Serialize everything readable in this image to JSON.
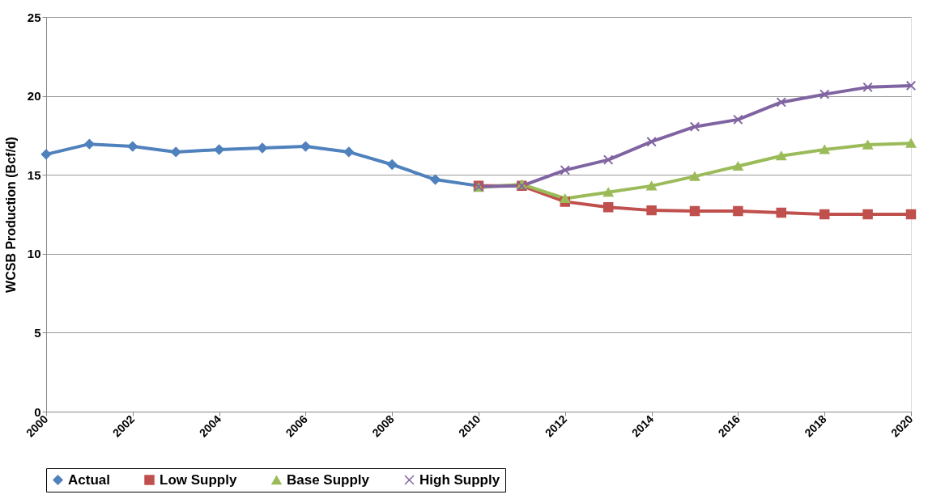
{
  "chart_data": {
    "type": "line",
    "ylabel": "WCSB Production  (Bcf/d)",
    "x": [
      2000,
      2001,
      2002,
      2003,
      2004,
      2005,
      2006,
      2007,
      2008,
      2009,
      2010,
      2011,
      2012,
      2013,
      2014,
      2015,
      2016,
      2017,
      2018,
      2019,
      2020
    ],
    "series": [
      {
        "name": "Actual",
        "color": "#4f81bd",
        "marker": "diamond",
        "values": [
          16.3,
          16.95,
          16.8,
          16.45,
          16.6,
          16.7,
          16.8,
          16.45,
          15.65,
          14.7,
          14.3,
          null,
          null,
          null,
          null,
          null,
          null,
          null,
          null,
          null,
          null
        ]
      },
      {
        "name": "Low Supply",
        "color": "#c0504d",
        "marker": "square",
        "values": [
          null,
          null,
          null,
          null,
          null,
          null,
          null,
          null,
          null,
          null,
          14.3,
          14.3,
          13.3,
          12.95,
          12.75,
          12.7,
          12.7,
          12.6,
          12.5,
          12.5,
          12.5
        ]
      },
      {
        "name": "Base Supply",
        "color": "#9bbb59",
        "marker": "triangle",
        "values": [
          null,
          null,
          null,
          null,
          null,
          null,
          null,
          null,
          null,
          null,
          14.2,
          14.4,
          13.5,
          13.9,
          14.3,
          14.9,
          15.55,
          16.2,
          16.6,
          16.9,
          17.0
        ]
      },
      {
        "name": "High Supply",
        "color": "#8064a2",
        "marker": "cross",
        "values": [
          null,
          null,
          null,
          null,
          null,
          null,
          null,
          null,
          null,
          null,
          14.25,
          14.3,
          15.3,
          15.95,
          17.1,
          18.05,
          18.5,
          19.6,
          20.1,
          20.55,
          20.65
        ]
      }
    ],
    "xlim": [
      2000,
      2020
    ],
    "xticks": [
      2000,
      2002,
      2004,
      2006,
      2008,
      2010,
      2012,
      2014,
      2016,
      2018,
      2020
    ],
    "ylim": [
      0,
      25
    ],
    "yticks": [
      0,
      5,
      10,
      15,
      20,
      25
    ],
    "grid": "y",
    "legend": "bottom",
    "line_style": "solid"
  }
}
